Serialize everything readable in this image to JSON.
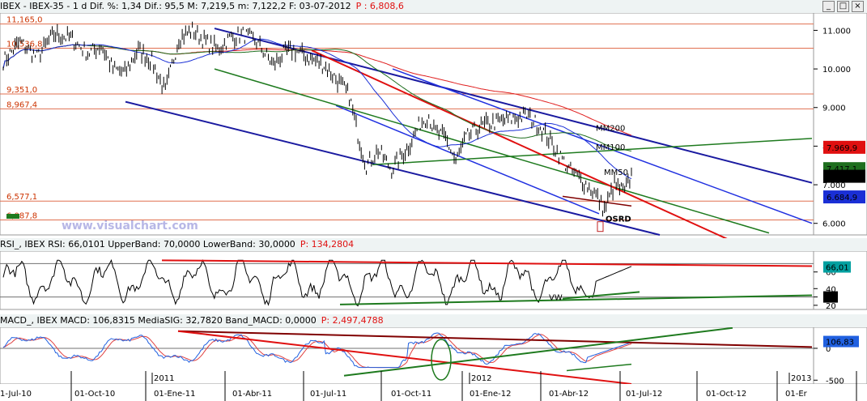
{
  "colors": {
    "price": "#000000",
    "mm50": "#1a2fd6",
    "mm100": "#1e6e1e",
    "mm200": "#e02020",
    "level": "#e07050",
    "blue_channel": "#1a1aa0",
    "green": "#1e7a1e",
    "red": "#e01010",
    "rsi": "#000000",
    "macd": "#2060e0",
    "signal": "#e04040"
  },
  "header": {
    "title": "IBEX - IBEX-35 - 1 d Dif. %: 1,34 Dif.: 95,5 M: 7,219,5 m: 7,122,2 F: 03-07-2012",
    "price_label": "P : 6,808,6"
  },
  "window_buttons": [
    "_",
    "□",
    "×"
  ],
  "watermark": "www.visualchart.com",
  "chart_data": [
    {
      "type": "line",
      "name": "price",
      "ylim": [
        5700,
        11450
      ],
      "yticks": [
        6000,
        7000,
        8000,
        9000,
        10000,
        11000
      ],
      "ytick_labels": [
        "6.000",
        "7.000",
        "8.000",
        "9.000",
        "10.000",
        "11.000"
      ],
      "levels": [
        11165,
        10536,
        9351,
        8967,
        6577,
        6087
      ],
      "level_labels": [
        "11,165,0",
        "10,536,8",
        "9,351,0",
        "8,967,4",
        "6,577,1",
        "6,087,8"
      ],
      "price_key": [
        [
          0,
          10200
        ],
        [
          10,
          10700
        ],
        [
          20,
          10300
        ],
        [
          30,
          10900
        ],
        [
          40,
          10800
        ],
        [
          50,
          10400
        ],
        [
          58,
          10600
        ],
        [
          65,
          10000
        ],
        [
          72,
          9900
        ],
        [
          80,
          10500
        ],
        [
          88,
          10200
        ],
        [
          96,
          9400
        ],
        [
          104,
          10800
        ],
        [
          112,
          11000
        ],
        [
          120,
          10700
        ],
        [
          127,
          10500
        ],
        [
          134,
          10800
        ],
        [
          142,
          10900
        ],
        [
          150,
          10700
        ],
        [
          160,
          10100
        ],
        [
          166,
          10400
        ],
        [
          172,
          10500
        ],
        [
          180,
          10300
        ],
        [
          190,
          10100
        ],
        [
          198,
          9700
        ],
        [
          205,
          9300
        ],
        [
          210,
          8300
        ],
        [
          215,
          7500
        ],
        [
          222,
          7900
        ],
        [
          230,
          7400
        ],
        [
          235,
          7700
        ],
        [
          240,
          8000
        ],
        [
          247,
          8600
        ],
        [
          252,
          8800
        ],
        [
          255,
          8400
        ],
        [
          262,
          8200
        ],
        [
          268,
          7600
        ],
        [
          274,
          8200
        ],
        [
          282,
          8500
        ],
        [
          290,
          8600
        ],
        [
          300,
          8700
        ],
        [
          310,
          8800
        ],
        [
          318,
          8500
        ],
        [
          326,
          8000
        ],
        [
          335,
          7400
        ],
        [
          343,
          7100
        ],
        [
          350,
          6800
        ],
        [
          356,
          6350
        ],
        [
          362,
          7000
        ],
        [
          368,
          6800
        ],
        [
          372,
          7250
        ]
      ],
      "ma_labels": [
        "MM200",
        "MM100",
        "MM50"
      ],
      "price_tags": [
        {
          "label": "7.969,9",
          "value": 7969.9,
          "color": "#e01010"
        },
        {
          "label": "7.417,1",
          "value": 7417.1,
          "color": "#1e6e1e"
        },
        {
          "label": "7.219,5",
          "value": 7219.5,
          "color": "#000000"
        },
        {
          "label": "6.684,9",
          "value": 6684.9,
          "color": "#1a2fd6"
        }
      ],
      "annotations": [
        "OSRD"
      ]
    },
    {
      "type": "line",
      "name": "rsi",
      "header": {
        "title": "RSI_, IBEX RSI: 66,0101 UpperBand: 70,0000 LowerBand: 30,0000",
        "price_label": "P: 134,2804"
      },
      "ylim": [
        15,
        85
      ],
      "yticks": [
        20,
        30,
        40,
        60
      ],
      "ytick_labels": [
        "20",
        "30",
        "40",
        "60"
      ],
      "bands": [
        70,
        30
      ],
      "tags": [
        {
          "label": "66,01",
          "value": 66.01
        },
        {
          "label": "30",
          "value": 30
        }
      ],
      "annotations": [
        "VW"
      ]
    },
    {
      "type": "line",
      "name": "macd",
      "header": {
        "title": "MACD_, IBEX MACD: 106,8315 MediaSIG: 32,7820 Band_MACD: 0,0000",
        "price_label": "P: 2,497,4788"
      },
      "ylim": [
        -560,
        330
      ],
      "yticks": [
        0,
        -500
      ],
      "ytick_labels": [
        "0",
        "-500"
      ],
      "tags": [
        {
          "label": "106,83",
          "value": 106.83
        }
      ]
    }
  ],
  "x_axis": {
    "labels": [
      "1-Jul-10",
      "01-Oct-10",
      "01-Ene-11",
      "01-Abr-11",
      "01-Jul-11",
      "01-Oct-11",
      "01-Ene-12",
      "01-Abr-12",
      "01-Jul-12",
      "01-Oct-12",
      "01-Er"
    ],
    "years": [
      "2011",
      "2012",
      "2013"
    ]
  }
}
